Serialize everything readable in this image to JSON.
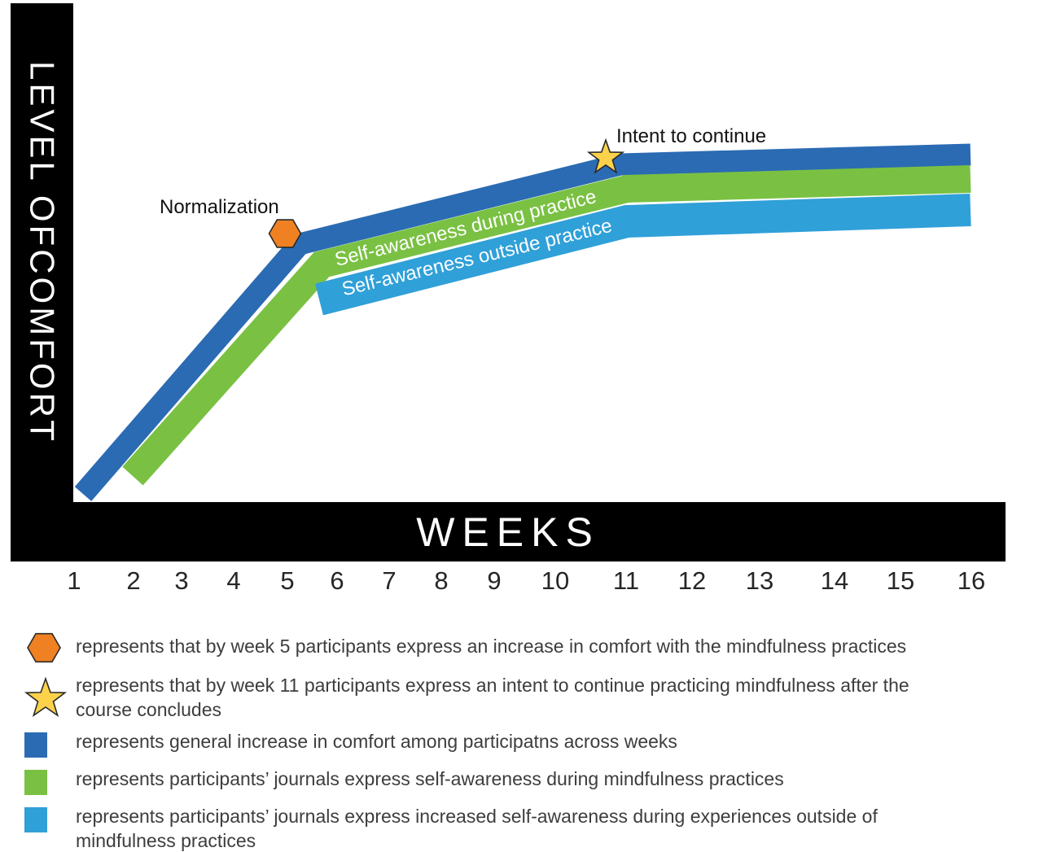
{
  "title_bars": {
    "y_axis_label": "LEVEL OFCOMFORT",
    "x_axis_label": "WEEKS"
  },
  "x_axis": {
    "ticks": [
      "1",
      "2",
      "3",
      "4",
      "5",
      "6",
      "7",
      "8",
      "9",
      "10",
      "11",
      "12",
      "13",
      "14",
      "15",
      "16"
    ]
  },
  "annotations": {
    "normalization_label": "Normalization",
    "intent_label": "Intent to continue"
  },
  "band_labels": {
    "during": "Self-awareness during practice",
    "outside": "Self-awareness outside practice"
  },
  "colors": {
    "comfort_band": "#2b6bb3",
    "during_band": "#7ac143",
    "outside_band": "#30a0d8",
    "hexagon": "#ef8122",
    "star": "#fcd24b",
    "marker_outline": "#2a2a2a",
    "axis_bar": "#000000"
  },
  "legend": {
    "items": [
      {
        "icon": "orange-hexagon-icon",
        "lines": [
          "represents that by week 5 participants express an increase in comfort with the mindfulness practices"
        ]
      },
      {
        "icon": "yellow-star-icon",
        "lines": [
          "represents that by week 11 participants express an intent to continue practicing mindfulness after the",
          "course concludes"
        ]
      },
      {
        "icon": "blue-square-icon",
        "lines": [
          "represents general increase in comfort among participatns across weeks"
        ]
      },
      {
        "icon": "green-square-icon",
        "lines": [
          "represents participants’ journals express self-awareness during mindfulness practices"
        ]
      },
      {
        "icon": "lightblue-square-icon",
        "lines": [
          "represents participants’ journals express increased self-awareness during experiences outside of",
          "mindfulness practices"
        ]
      }
    ]
  },
  "chart_data": {
    "type": "area",
    "title": "",
    "xlabel": "WEEKS",
    "ylabel": "LEVEL OF COMFORT",
    "x_range": [
      1,
      16
    ],
    "y_scale": "qualitative 0-100 (no numeric axis shown)",
    "grid": false,
    "legend_position": "below",
    "series": [
      {
        "name": "General increase in comfort among participatns across weeks",
        "color": "#2b6bb3",
        "x": [
          1,
          5,
          11,
          16
        ],
        "values": [
          3,
          68,
          89,
          91
        ]
      },
      {
        "name": "Participants’ journals express self-awareness during mindfulness practices",
        "color": "#7ac143",
        "x": [
          2,
          5.5,
          11,
          16
        ],
        "values": [
          7,
          63,
          82,
          85
        ]
      },
      {
        "name": "Participants’ journals express increased self-awareness during experiences outside of mindfulness practices",
        "color": "#30a0d8",
        "x": [
          5.6,
          11,
          16
        ],
        "values": [
          53,
          74,
          77
        ]
      }
    ],
    "annotations": [
      {
        "x": 5,
        "label": "Normalization",
        "marker": "orange-hexagon"
      },
      {
        "x": 11,
        "label": "Intent to continue",
        "marker": "yellow-star"
      }
    ]
  }
}
